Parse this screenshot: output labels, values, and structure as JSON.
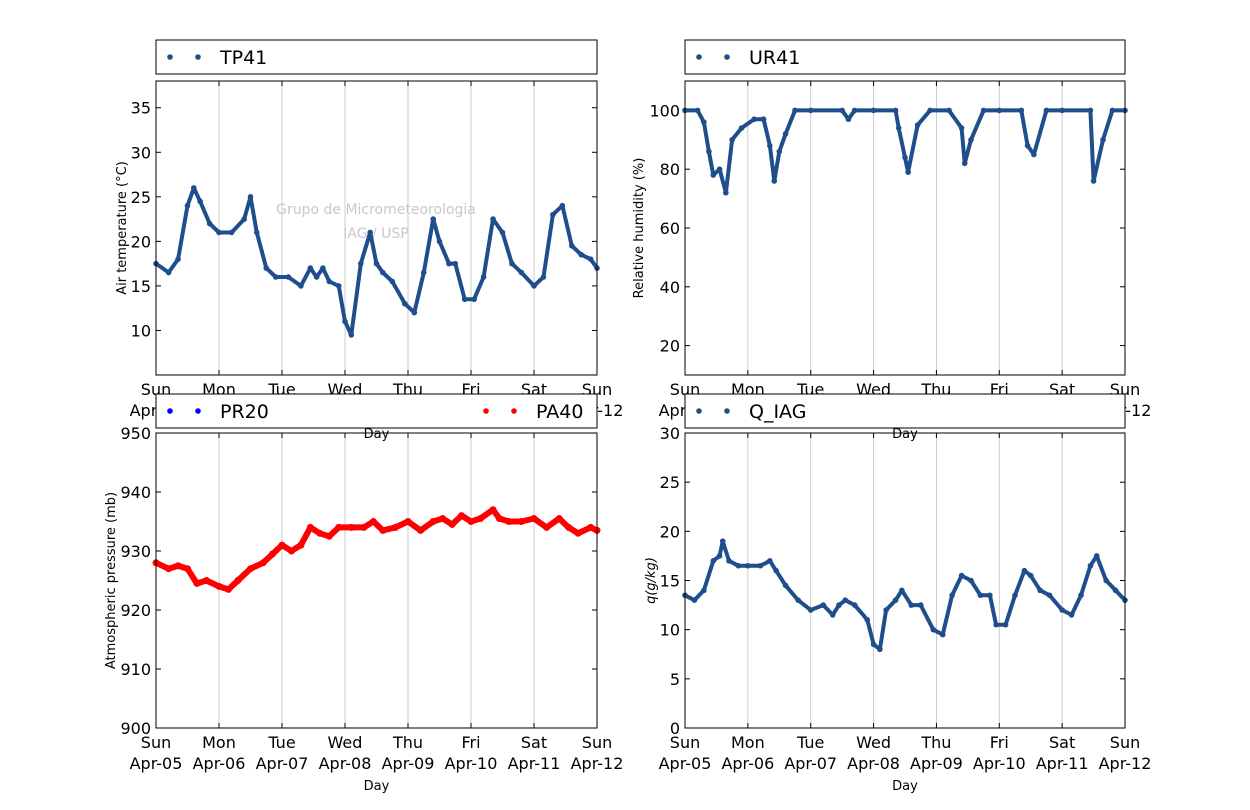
{
  "x_ticks": [
    {
      "day": "Sun",
      "date": "Apr-05"
    },
    {
      "day": "Mon",
      "date": "Apr-06"
    },
    {
      "day": "Tue",
      "date": "Apr-07"
    },
    {
      "day": "Wed",
      "date": "Apr-08"
    },
    {
      "day": "Thu",
      "date": "Apr-09"
    },
    {
      "day": "Fri",
      "date": "Apr-10"
    },
    {
      "day": "Sat",
      "date": "Apr-11"
    },
    {
      "day": "Sun",
      "date": "Apr-12"
    }
  ],
  "watermark": {
    "line1": "Grupo de Micrometeorologia",
    "line2": "IAG / USP"
  },
  "colors": {
    "navy": "#1f4e8c",
    "blue": "#0000ff",
    "red": "#ff0000"
  },
  "chart_data": [
    {
      "type": "scatter",
      "xlabel": "Day",
      "ylabel": "Air temperature (°C)",
      "ylim": [
        5,
        38
      ],
      "yticks": [
        10,
        15,
        20,
        25,
        30,
        35
      ],
      "grid": "vertical",
      "legend": "top-left",
      "series": [
        {
          "name": "TP41",
          "color": "#1f4e8c",
          "x": [
            0,
            0.2,
            0.35,
            0.5,
            0.6,
            0.7,
            0.85,
            1.0,
            1.2,
            1.4,
            1.5,
            1.6,
            1.75,
            1.9,
            2.1,
            2.3,
            2.45,
            2.55,
            2.65,
            2.75,
            2.9,
            3.0,
            3.1,
            3.25,
            3.4,
            3.5,
            3.6,
            3.75,
            3.95,
            4.1,
            4.25,
            4.4,
            4.5,
            4.65,
            4.75,
            4.9,
            5.05,
            5.2,
            5.35,
            5.5,
            5.65,
            5.8,
            6.0,
            6.15,
            6.3,
            6.45,
            6.6,
            6.75,
            6.9,
            7.0
          ],
          "y": [
            17.5,
            16.5,
            18.0,
            24.0,
            26.0,
            24.5,
            22.0,
            21.0,
            21.0,
            22.5,
            25.0,
            21.0,
            17.0,
            16.0,
            16.0,
            15.0,
            17.0,
            16.0,
            17.0,
            15.5,
            15.0,
            11.0,
            9.5,
            17.5,
            21.0,
            17.5,
            16.5,
            15.5,
            13.0,
            12.0,
            16.5,
            22.5,
            20.0,
            17.5,
            17.5,
            13.5,
            13.5,
            16.0,
            22.5,
            21.0,
            17.5,
            16.5,
            15.0,
            16.0,
            23.0,
            24.0,
            19.5,
            18.5,
            18.0,
            17.0
          ]
        }
      ]
    },
    {
      "type": "scatter",
      "xlabel": "Day",
      "ylabel": "Relative humidity (%)",
      "ylim": [
        10,
        110
      ],
      "yticks": [
        20,
        40,
        60,
        80,
        100
      ],
      "grid": "vertical",
      "legend": "top-left",
      "series": [
        {
          "name": "UR41",
          "color": "#1f4e8c",
          "x": [
            0,
            0.2,
            0.3,
            0.38,
            0.45,
            0.55,
            0.65,
            0.75,
            0.9,
            1.1,
            1.25,
            1.35,
            1.42,
            1.5,
            1.6,
            1.75,
            2.0,
            2.5,
            2.6,
            2.7,
            3.0,
            3.35,
            3.4,
            3.5,
            3.55,
            3.7,
            3.9,
            4.2,
            4.4,
            4.45,
            4.55,
            4.75,
            5.0,
            5.35,
            5.45,
            5.55,
            5.75,
            6.0,
            6.45,
            6.5,
            6.65,
            6.8,
            7.0
          ],
          "y": [
            100,
            100,
            96,
            86,
            78,
            80,
            72,
            90,
            94,
            97,
            97,
            88,
            76,
            86,
            92,
            100,
            100,
            100,
            97,
            100,
            100,
            100,
            94,
            84,
            79,
            95,
            100,
            100,
            94,
            82,
            90,
            100,
            100,
            100,
            88,
            85,
            100,
            100,
            100,
            76,
            90,
            100,
            100
          ]
        }
      ]
    },
    {
      "type": "scatter",
      "xlabel": "Day",
      "ylabel": "Atmospheric pressure (mb)",
      "ylim": [
        900,
        950
      ],
      "yticks": [
        900,
        910,
        920,
        930,
        940,
        950
      ],
      "grid": "vertical",
      "legend": "top",
      "series": [
        {
          "name": "PR20",
          "color": "#0000ff",
          "x": [],
          "y": []
        },
        {
          "name": "PA40",
          "color": "#ff0000",
          "x": [
            0,
            0.2,
            0.35,
            0.5,
            0.65,
            0.8,
            1.0,
            1.15,
            1.3,
            1.5,
            1.7,
            1.85,
            2.0,
            2.15,
            2.3,
            2.45,
            2.6,
            2.75,
            2.9,
            3.1,
            3.3,
            3.45,
            3.6,
            3.8,
            4.0,
            4.2,
            4.4,
            4.55,
            4.7,
            4.85,
            5.0,
            5.15,
            5.35,
            5.45,
            5.6,
            5.8,
            6.0,
            6.2,
            6.4,
            6.55,
            6.7,
            6.9,
            7.0
          ],
          "y": [
            928,
            927,
            927.5,
            927,
            924.5,
            925,
            924,
            923.5,
            925,
            927,
            928,
            929.5,
            931,
            930,
            931,
            934,
            933,
            932.5,
            934,
            934,
            934,
            935,
            933.5,
            934,
            935,
            933.5,
            935,
            935.5,
            934.5,
            936,
            935,
            935.5,
            937,
            935.5,
            935,
            935,
            935.5,
            934,
            935.5,
            934,
            933,
            934,
            933.5
          ]
        }
      ]
    },
    {
      "type": "scatter",
      "xlabel": "Day",
      "ylabel": "q(g/kg)",
      "ylim": [
        0,
        30
      ],
      "yticks": [
        0,
        5,
        10,
        15,
        20,
        25,
        30
      ],
      "grid": "vertical",
      "legend": "top-left",
      "series": [
        {
          "name": "Q_IAG",
          "color": "#1f4e8c",
          "x": [
            0,
            0.15,
            0.3,
            0.45,
            0.55,
            0.6,
            0.7,
            0.85,
            1.0,
            1.2,
            1.35,
            1.45,
            1.6,
            1.8,
            2.0,
            2.2,
            2.35,
            2.45,
            2.55,
            2.7,
            2.9,
            3.0,
            3.1,
            3.2,
            3.35,
            3.45,
            3.6,
            3.75,
            3.95,
            4.1,
            4.25,
            4.4,
            4.55,
            4.7,
            4.85,
            4.95,
            5.1,
            5.25,
            5.4,
            5.5,
            5.65,
            5.8,
            6.0,
            6.15,
            6.3,
            6.45,
            6.55,
            6.7,
            6.85,
            7.0
          ],
          "y": [
            13.5,
            13,
            14,
            17,
            17.5,
            19,
            17,
            16.5,
            16.5,
            16.5,
            17,
            16,
            14.5,
            13,
            12,
            12.5,
            11.5,
            12.5,
            13,
            12.5,
            11,
            8.5,
            8,
            12,
            13,
            14,
            12.5,
            12.5,
            10,
            9.5,
            13.5,
            15.5,
            15,
            13.5,
            13.5,
            10.5,
            10.5,
            13.5,
            16,
            15.5,
            14,
            13.5,
            12,
            11.5,
            13.5,
            16.5,
            17.5,
            15,
            14,
            13
          ]
        }
      ]
    }
  ]
}
